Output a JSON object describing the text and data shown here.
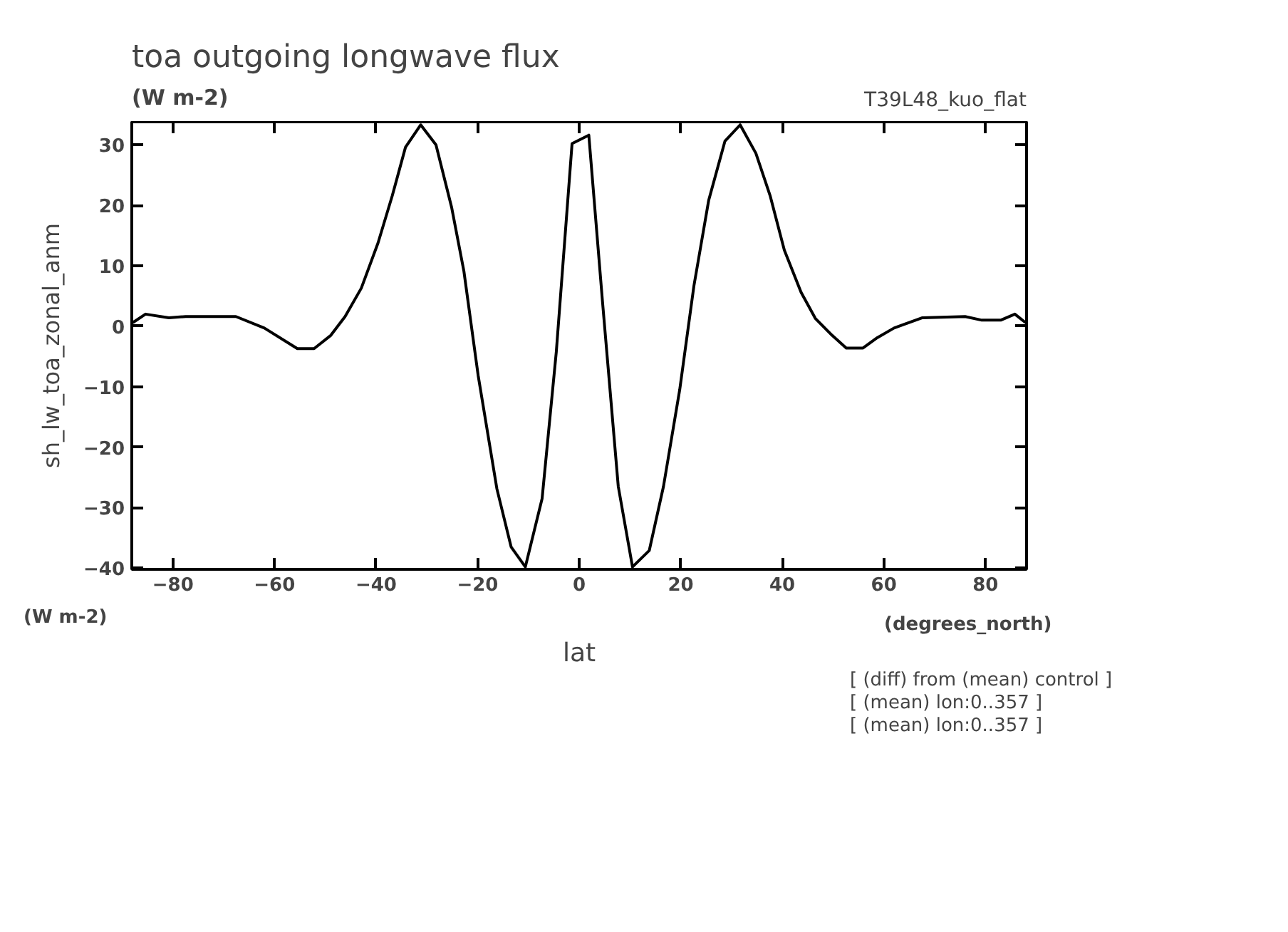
{
  "chart_data": {
    "type": "line",
    "title": "toa outgoing longwave flux",
    "subtitle": "(W m-2)",
    "xlabel": "lat",
    "ylabel": "sh_lw_toa_zonal_anm",
    "annotations": [
      "T39L48_kuo_flat",
      "(W m-2)",
      "(degrees_north)",
      "[ (diff) from (mean) control ]",
      "[ (mean) lon:0..357 ]",
      "[ (mean) lon:0..357 ]"
    ],
    "series": [
      {
        "color": "#000000",
        "x": [
          -87.9,
          -85.4,
          -80.8,
          -77.5,
          -67.6,
          -62.0,
          -55.5,
          -52.2,
          -48.9,
          -46.1,
          -42.9,
          -39.6,
          -36.8,
          -34.2,
          -31.2,
          -28.2,
          -25.1,
          -22.7,
          -19.9,
          -16.2,
          -13.4,
          -10.6,
          -7.3,
          -4.5,
          -1.4,
          1.9,
          4.6,
          7.7,
          10.5,
          13.8,
          16.6,
          19.8,
          22.6,
          25.5,
          28.7,
          31.7,
          34.8,
          37.6,
          40.4,
          43.7,
          46.5,
          49.8,
          52.6,
          55.9,
          58.7,
          62.0,
          67.6,
          76.0,
          79.3,
          83.0,
          85.8,
          87.9
        ],
        "values": [
          0.6,
          2.0,
          1.4,
          1.6,
          1.6,
          -0.3,
          -3.7,
          -3.7,
          -1.5,
          1.6,
          6.3,
          13.8,
          21.6,
          29.6,
          33.3,
          30.0,
          19.6,
          9.1,
          -8.1,
          -26.9,
          -36.5,
          -39.8,
          -28.5,
          -4.2,
          30.2,
          31.6,
          4.0,
          -26.5,
          -39.8,
          -37.1,
          -26.5,
          -10.5,
          6.7,
          20.8,
          30.6,
          33.3,
          28.6,
          21.6,
          12.6,
          5.6,
          1.3,
          -1.5,
          -3.6,
          -3.6,
          -1.9,
          -0.3,
          1.4,
          1.6,
          1.0,
          1.0,
          2.0,
          0.6
        ]
      }
    ],
    "xlim": [
      -88.1,
      88.1
    ],
    "ylim": [
      -40.2,
      33.8
    ],
    "xticks": [
      -80,
      -60,
      -40,
      -20,
      0,
      20,
      40,
      60,
      80
    ],
    "yticks": [
      -40,
      -30,
      -20,
      -10,
      0,
      10,
      20,
      30
    ],
    "grid": false,
    "marker": "none",
    "line_style": "solid"
  }
}
